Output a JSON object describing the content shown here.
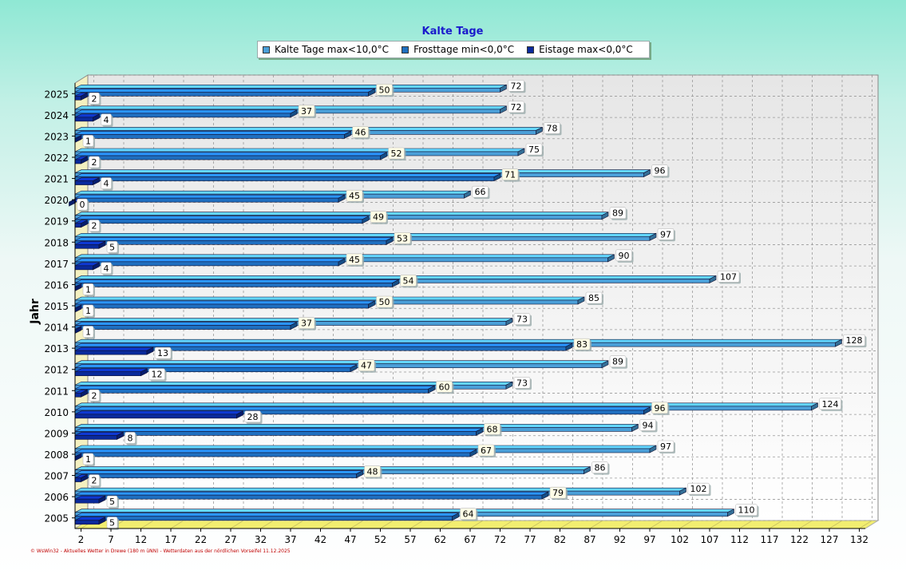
{
  "chart_data": {
    "type": "bar",
    "orientation": "horizontal",
    "title": "Kalte Tage",
    "ylabel": "Jahr",
    "categories": [
      "2025",
      "2024",
      "2023",
      "2022",
      "2021",
      "2020",
      "2019",
      "2018",
      "2017",
      "2016",
      "2015",
      "2014",
      "2013",
      "2012",
      "2011",
      "2010",
      "2009",
      "2008",
      "2007",
      "2006",
      "2005"
    ],
    "series": [
      {
        "name": "Kalte Tage max<10,0°C",
        "color": "#4a9fd8",
        "values": [
          72,
          72,
          78,
          75,
          96,
          66,
          89,
          97,
          90,
          107,
          85,
          73,
          128,
          89,
          73,
          124,
          94,
          97,
          86,
          102,
          110
        ]
      },
      {
        "name": "Frosttage min<0,0°C",
        "color": "#1f6fc0",
        "values": [
          50,
          37,
          46,
          52,
          71,
          45,
          49,
          53,
          45,
          54,
          50,
          37,
          83,
          47,
          60,
          96,
          68,
          67,
          48,
          79,
          64
        ]
      },
      {
        "name": "Eistage max<0,0°C",
        "color": "#0a2a9c",
        "values": [
          2,
          4,
          1,
          2,
          4,
          0,
          2,
          5,
          4,
          1,
          1,
          1,
          13,
          12,
          2,
          28,
          8,
          1,
          2,
          5,
          5
        ]
      }
    ],
    "xticks": [
      2,
      7,
      12,
      17,
      22,
      27,
      32,
      37,
      42,
      47,
      52,
      57,
      62,
      67,
      72,
      77,
      82,
      87,
      92,
      97,
      102,
      107,
      112,
      117,
      122,
      127,
      132
    ],
    "xlim": [
      1,
      133
    ],
    "grid": true,
    "legend_position": "top-center"
  },
  "footer": "© WsWin32 - Aktuelles Wetter in Drewe (180 m üNN) - Wetterdaten aus der nördlichen Vorseifel 11.12.2025"
}
